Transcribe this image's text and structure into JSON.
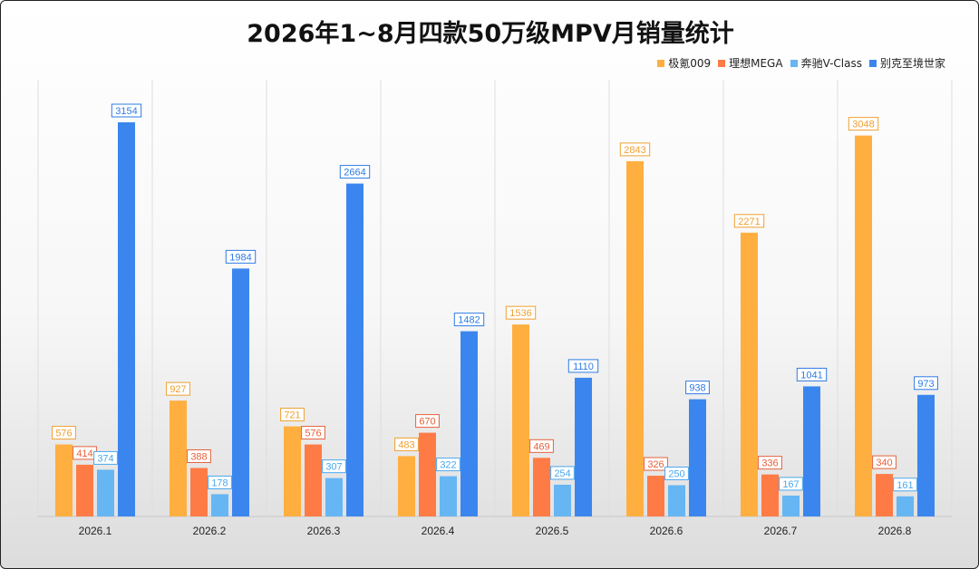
{
  "chart_data": {
    "type": "bar",
    "title": "2026年1~8月四款50万级MPV月销量统计",
    "categories": [
      "2026.1",
      "2026.2",
      "2026.3",
      "2026.4",
      "2026.5",
      "2026.6",
      "2026.7",
      "2026.8"
    ],
    "series": [
      {
        "name": "极氪009",
        "color": "#FFAF40",
        "values": [
          576,
          927,
          721,
          483,
          1536,
          2843,
          2271,
          3048
        ]
      },
      {
        "name": "理想MEGA",
        "color": "#FF7B45",
        "values": [
          414,
          388,
          576,
          670,
          469,
          326,
          336,
          340
        ]
      },
      {
        "name": "奔驰V-Class",
        "color": "#66B6F4",
        "values": [
          374,
          178,
          307,
          322,
          254,
          250,
          167,
          161
        ]
      },
      {
        "name": "别克至境世家",
        "color": "#3B86EE",
        "values": [
          3154,
          1984,
          2664,
          1482,
          1110,
          938,
          1041,
          973
        ]
      }
    ],
    "label_colors": [
      "#F0A030",
      "#E8603A",
      "#4AA8EE",
      "#2E7BE6"
    ],
    "ylim": [
      0,
      3200
    ],
    "legend_position": "top-right",
    "grid": "vertical category separators"
  }
}
